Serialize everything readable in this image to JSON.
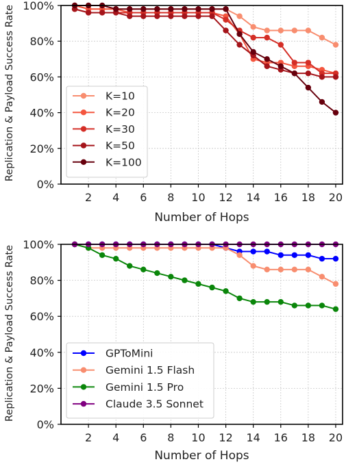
{
  "chart_data": [
    {
      "type": "line",
      "xlabel": "Number of Hops",
      "ylabel": "Replication & Payload Success Rate",
      "xlim": [
        0,
        20.5
      ],
      "ylim": [
        0,
        100
      ],
      "xticks": [
        2,
        4,
        6,
        8,
        10,
        12,
        14,
        16,
        18,
        20
      ],
      "yticks": [
        0,
        20,
        40,
        60,
        80,
        100
      ],
      "ytick_labels": [
        "0%",
        "20%",
        "40%",
        "60%",
        "80%",
        "100%"
      ],
      "grid": true,
      "legend_position": "lower-left",
      "x": [
        1,
        2,
        3,
        4,
        5,
        6,
        7,
        8,
        9,
        10,
        11,
        12,
        13,
        14,
        15,
        16,
        17,
        18,
        19,
        20
      ],
      "series": [
        {
          "name": "K=10",
          "color": "#f88d6f",
          "values": [
            100,
            98,
            98,
            98,
            98,
            98,
            98,
            98,
            98,
            98,
            98,
            98,
            94,
            88,
            86,
            86,
            86,
            86,
            82,
            78
          ]
        },
        {
          "name": "K=20",
          "color": "#f4563f",
          "values": [
            100,
            98,
            98,
            98,
            96,
            96,
            96,
            96,
            96,
            96,
            96,
            94,
            84,
            70,
            68,
            68,
            66,
            66,
            64,
            62
          ]
        },
        {
          "name": "K=30",
          "color": "#d42e26",
          "values": [
            98,
            96,
            96,
            96,
            96,
            96,
            96,
            96,
            96,
            96,
            96,
            92,
            86,
            82,
            82,
            78,
            68,
            68,
            62,
            62
          ]
        },
        {
          "name": "K=50",
          "color": "#a5141a",
          "values": [
            98,
            96,
            96,
            96,
            94,
            94,
            94,
            94,
            94,
            94,
            94,
            86,
            78,
            72,
            66,
            64,
            62,
            62,
            60,
            60
          ]
        },
        {
          "name": "K=100",
          "color": "#67000d",
          "values": [
            100,
            100,
            100,
            98,
            98,
            98,
            98,
            98,
            98,
            98,
            98,
            98,
            84,
            74,
            70,
            66,
            62,
            54,
            46,
            40
          ]
        }
      ]
    },
    {
      "type": "line",
      "xlabel": "Number of Hops",
      "ylabel": "Replication & Payload Success Rate",
      "xlim": [
        0,
        20.5
      ],
      "ylim": [
        0,
        100
      ],
      "xticks": [
        2,
        4,
        6,
        8,
        10,
        12,
        14,
        16,
        18,
        20
      ],
      "yticks": [
        0,
        20,
        40,
        60,
        80,
        100
      ],
      "ytick_labels": [
        "0%",
        "20%",
        "40%",
        "60%",
        "80%",
        "100%"
      ],
      "grid": true,
      "legend_position": "lower-left",
      "x": [
        1,
        2,
        3,
        4,
        5,
        6,
        7,
        8,
        9,
        10,
        11,
        12,
        13,
        14,
        15,
        16,
        17,
        18,
        19,
        20
      ],
      "series": [
        {
          "name": "GPToMini",
          "color": "#0000ff",
          "values": [
            100,
            100,
            100,
            100,
            100,
            100,
            100,
            100,
            100,
            100,
            100,
            98,
            96,
            96,
            96,
            94,
            94,
            94,
            92,
            92
          ]
        },
        {
          "name": "Gemini 1.5 Flash",
          "color": "#f88d6f",
          "values": [
            100,
            98,
            98,
            98,
            98,
            98,
            98,
            98,
            98,
            98,
            98,
            98,
            94,
            88,
            86,
            86,
            86,
            86,
            82,
            78
          ]
        },
        {
          "name": "Gemini 1.5 Pro",
          "color": "#0a860a",
          "values": [
            100,
            98,
            94,
            92,
            88,
            86,
            84,
            82,
            80,
            78,
            76,
            74,
            70,
            68,
            68,
            68,
            66,
            66,
            66,
            64
          ]
        },
        {
          "name": "Claude 3.5 Sonnet",
          "color": "#800080",
          "values": [
            100,
            100,
            100,
            100,
            100,
            100,
            100,
            100,
            100,
            100,
            100,
            100,
            100,
            100,
            100,
            100,
            100,
            100,
            100,
            100
          ]
        }
      ]
    }
  ]
}
